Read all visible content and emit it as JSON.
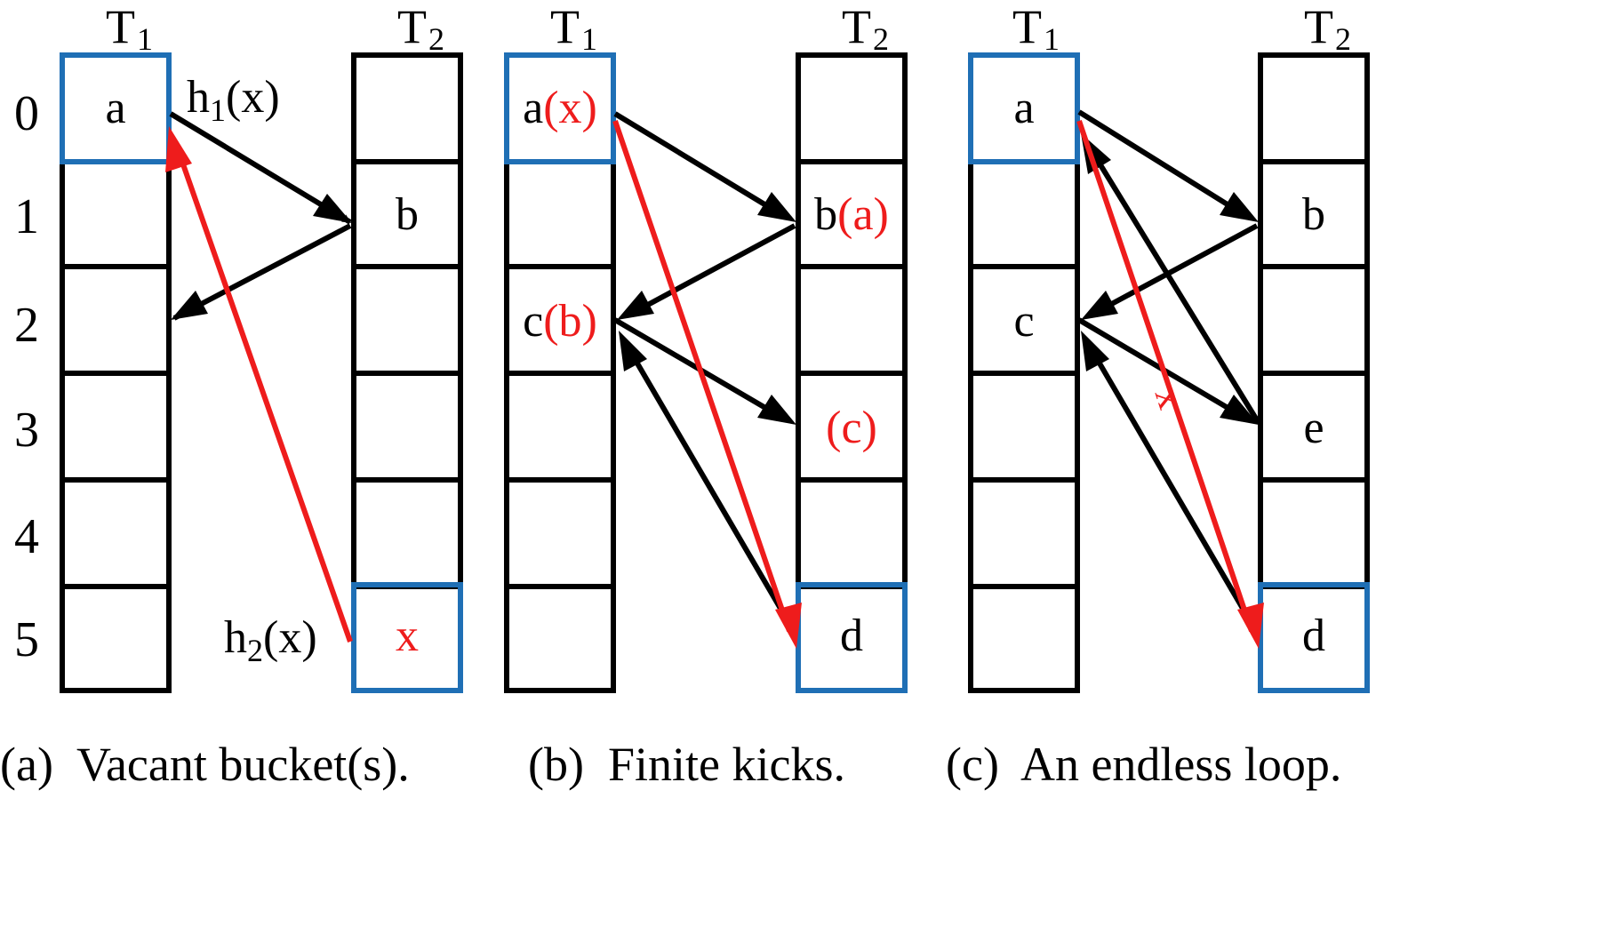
{
  "colors": {
    "line": "#000000",
    "highlight_border": "#1f6fb5",
    "red": "#ee1c1c"
  },
  "row_labels": [
    "0",
    "1",
    "2",
    "3",
    "4",
    "5"
  ],
  "table_labels": {
    "t1": "T",
    "t2": "T",
    "sub1": "1",
    "sub2": "2"
  },
  "panel_a": {
    "caption": "(a)  Vacant bucket(s).",
    "t1_cells": [
      "a",
      "",
      "",
      "",
      "",
      ""
    ],
    "t2_cells": [
      "",
      "b",
      "",
      "",
      "",
      "x"
    ],
    "h1_label": "h",
    "h1_sub": "1",
    "h1_arg": "(x)",
    "h2_label": "h",
    "h2_sub": "2",
    "h2_arg": "(x)"
  },
  "panel_b": {
    "caption": "(b)  Finite kicks.",
    "t1_a_main": "a",
    "t1_a_red": "(x)",
    "t1_c_main": "c",
    "t1_c_red": "(b)",
    "t2_b_main": "b",
    "t2_b_red": "(a)",
    "t2_c_red": "(c)",
    "t2_d": "d"
  },
  "panel_c": {
    "caption": "(c)  An endless loop.",
    "t1_cells": [
      "a",
      "",
      "c",
      "",
      "",
      ""
    ],
    "t2_cells": [
      "",
      "b",
      "",
      "e",
      "",
      "d"
    ],
    "cross_mark": "x"
  }
}
